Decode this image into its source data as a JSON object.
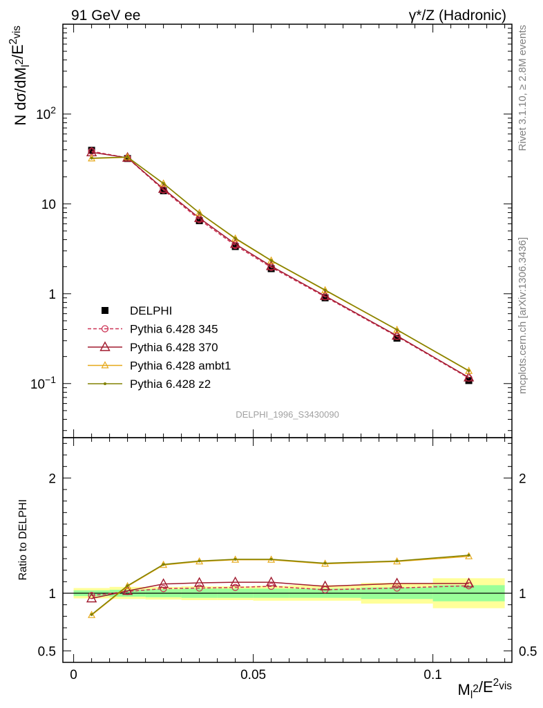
{
  "header": {
    "left": "91 GeV ee",
    "right": "γ*/Z (Hadronic)"
  },
  "side_labels": {
    "rivet": "Rivet 3.1.10, ≥ 2.8M events",
    "mcplots": "mcplots.cern.ch [arXiv:1306.3436]"
  },
  "analysis_tag": "DELPHI_1996_S3430090",
  "chart_data": [
    {
      "type": "line",
      "panel": "main",
      "ylabel": "N dσ/dM_l^2/E_vis^2",
      "yscale": "log",
      "ylim": [
        0.025,
        1000
      ],
      "ytick_labels": [
        "10^-1",
        "1",
        "10",
        "10^2"
      ],
      "x": [
        0.005,
        0.015,
        0.025,
        0.035,
        0.045,
        0.055,
        0.07,
        0.09,
        0.11
      ],
      "series": [
        {
          "name": "DELPHI",
          "style": "data",
          "color": "#000000",
          "values": [
            39.5,
            32.0,
            14.0,
            6.5,
            3.35,
            1.9,
            0.9,
            0.32,
            0.108
          ]
        },
        {
          "name": "Pythia 6.428 345",
          "style": "dashed-circle",
          "color": "#cc3355",
          "values": [
            38.5,
            32.5,
            14.3,
            6.7,
            3.45,
            1.97,
            0.925,
            0.335,
            0.115
          ]
        },
        {
          "name": "Pythia 6.428 370",
          "style": "solid-triangle",
          "color": "#a01a2e",
          "values": [
            37.5,
            32.6,
            14.7,
            6.95,
            3.58,
            2.03,
            0.945,
            0.341,
            0.117
          ]
        },
        {
          "name": "Pythia 6.428 ambt1",
          "style": "solid-small-triangle",
          "color": "#e6a817",
          "values": [
            32.0,
            33.0,
            16.8,
            7.9,
            4.1,
            2.33,
            1.09,
            0.395,
            0.138
          ]
        },
        {
          "name": "Pythia 6.428 z2",
          "style": "solid-dot",
          "color": "#808000",
          "values": [
            32.3,
            33.2,
            16.9,
            7.95,
            4.15,
            2.35,
            1.1,
            0.398,
            0.139
          ]
        }
      ]
    },
    {
      "type": "line",
      "panel": "ratio",
      "ylabel": "Ratio to DELPHI",
      "xlabel": "M_l^2/E_vis^2",
      "xlim": [
        -0.003,
        0.122
      ],
      "ylim": [
        0.4,
        2.35
      ],
      "xtick_labels": [
        "0",
        "0.05",
        "0.1"
      ],
      "ytick_labels": [
        "0.5",
        "1",
        "2"
      ],
      "bands": [
        {
          "x0": 0.0,
          "x1": 0.01,
          "stat_lo": 0.975,
          "stat_hi": 1.025,
          "tot_lo": 0.955,
          "tot_hi": 1.045
        },
        {
          "x0": 0.01,
          "x1": 0.02,
          "stat_lo": 0.97,
          "stat_hi": 1.03,
          "tot_lo": 0.95,
          "tot_hi": 1.055
        },
        {
          "x0": 0.02,
          "x1": 0.03,
          "stat_lo": 0.965,
          "stat_hi": 1.035,
          "tot_lo": 0.945,
          "tot_hi": 1.055
        },
        {
          "x0": 0.03,
          "x1": 0.04,
          "stat_lo": 0.96,
          "stat_hi": 1.04,
          "tot_lo": 0.94,
          "tot_hi": 1.06
        },
        {
          "x0": 0.04,
          "x1": 0.05,
          "stat_lo": 0.96,
          "stat_hi": 1.04,
          "tot_lo": 0.94,
          "tot_hi": 1.06
        },
        {
          "x0": 0.05,
          "x1": 0.06,
          "stat_lo": 0.96,
          "stat_hi": 1.04,
          "tot_lo": 0.935,
          "tot_hi": 1.065
        },
        {
          "x0": 0.06,
          "x1": 0.08,
          "stat_lo": 0.96,
          "stat_hi": 1.04,
          "tot_lo": 0.935,
          "tot_hi": 1.07
        },
        {
          "x0": 0.08,
          "x1": 0.1,
          "stat_lo": 0.95,
          "stat_hi": 1.05,
          "tot_lo": 0.91,
          "tot_hi": 1.09
        },
        {
          "x0": 0.1,
          "x1": 0.12,
          "stat_lo": 0.93,
          "stat_hi": 1.07,
          "tot_lo": 0.87,
          "tot_hi": 1.13
        }
      ],
      "series": [
        {
          "name": "Pythia 6.428 345",
          "color": "#cc3355",
          "values": [
            0.98,
            1.015,
            1.04,
            1.045,
            1.05,
            1.06,
            1.03,
            1.045,
            1.065
          ]
        },
        {
          "name": "Pythia 6.428 370",
          "color": "#a01a2e",
          "values": [
            0.955,
            1.02,
            1.08,
            1.09,
            1.095,
            1.095,
            1.06,
            1.085,
            1.085
          ]
        },
        {
          "name": "Pythia 6.428 ambt1",
          "color": "#e6a817",
          "values": [
            0.81,
            1.06,
            1.245,
            1.275,
            1.29,
            1.29,
            1.255,
            1.275,
            1.32
          ]
        },
        {
          "name": "Pythia 6.428 z2",
          "color": "#808000",
          "values": [
            0.815,
            1.065,
            1.25,
            1.28,
            1.295,
            1.295,
            1.26,
            1.28,
            1.33
          ]
        }
      ]
    }
  ]
}
